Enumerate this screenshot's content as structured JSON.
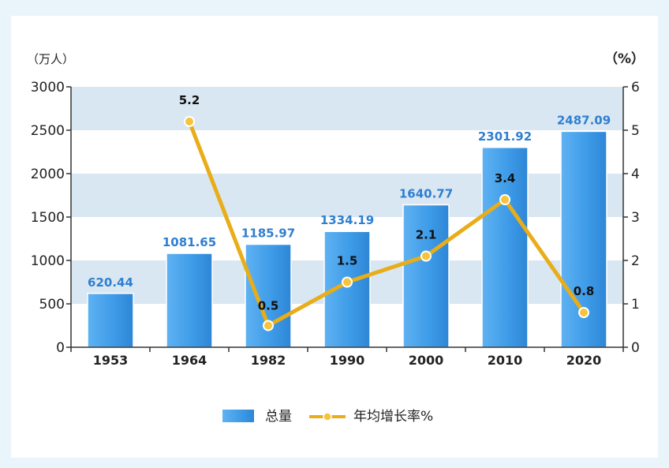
{
  "chart_data": {
    "type": "bar",
    "categories": [
      "1953",
      "1964",
      "1982",
      "1990",
      "2000",
      "2010",
      "2020"
    ],
    "series": [
      {
        "name": "总量",
        "type": "bar",
        "axis": "left",
        "values": [
          620.44,
          1081.65,
          1185.97,
          1334.19,
          1640.77,
          2301.92,
          2487.09
        ],
        "labels": [
          "620.44",
          "1081.65",
          "1185.97",
          "1334.19",
          "1640.77",
          "2301.92",
          "2487.09"
        ]
      },
      {
        "name": "年均增长率%",
        "type": "line",
        "axis": "right",
        "values": [
          null,
          5.2,
          0.5,
          1.5,
          2.1,
          3.4,
          0.8
        ],
        "labels": [
          "",
          "5.2",
          "0.5",
          "1.5",
          "2.1",
          "3.4",
          "0.8"
        ]
      }
    ],
    "y_left": {
      "unit": "（万人）",
      "ylim": [
        0,
        3000
      ],
      "ticks": [
        0,
        500,
        1000,
        1500,
        2000,
        2500,
        3000
      ],
      "tick_labels": [
        "0",
        "500",
        "1000",
        "1500",
        "2000",
        "2500",
        "3000"
      ]
    },
    "y_right": {
      "unit": "（%）",
      "ylim": [
        0,
        6
      ],
      "ticks": [
        0,
        1,
        2,
        3,
        4,
        5,
        6
      ],
      "tick_labels": [
        "0",
        "1",
        "2",
        "3",
        "4",
        "5",
        "6"
      ]
    },
    "background_bands": true,
    "legend_position": "bottom-center",
    "colors": {
      "bar": "#3f9ce8",
      "bar_label": "#2f7fd0",
      "line": "#e8ad18",
      "marker_fill": "#f6c33a",
      "line_label": "#111111",
      "band": "#d9e7f3",
      "axis": "#333333"
    }
  }
}
